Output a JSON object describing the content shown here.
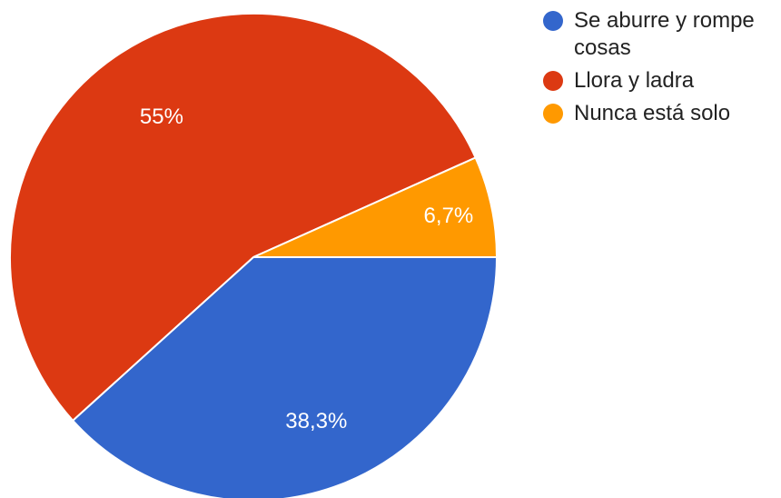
{
  "chart_data": {
    "type": "pie",
    "categories": [
      "Se aburre y rompe cosas",
      "Llora y ladra",
      "Nunca está solo"
    ],
    "values": [
      38.3,
      55,
      6.7
    ],
    "data_labels": [
      "38,3%",
      "55%",
      "6,7%"
    ],
    "colors": [
      "#3366cc",
      "#dc3912",
      "#ff9900"
    ],
    "legend_position": "right",
    "title": ""
  },
  "legend": [
    {
      "label": "Se aburre y rompe cosas",
      "color": "#3366cc"
    },
    {
      "label": "Llora y ladra",
      "color": "#dc3912"
    },
    {
      "label": "Nunca está solo",
      "color": "#ff9900"
    }
  ]
}
